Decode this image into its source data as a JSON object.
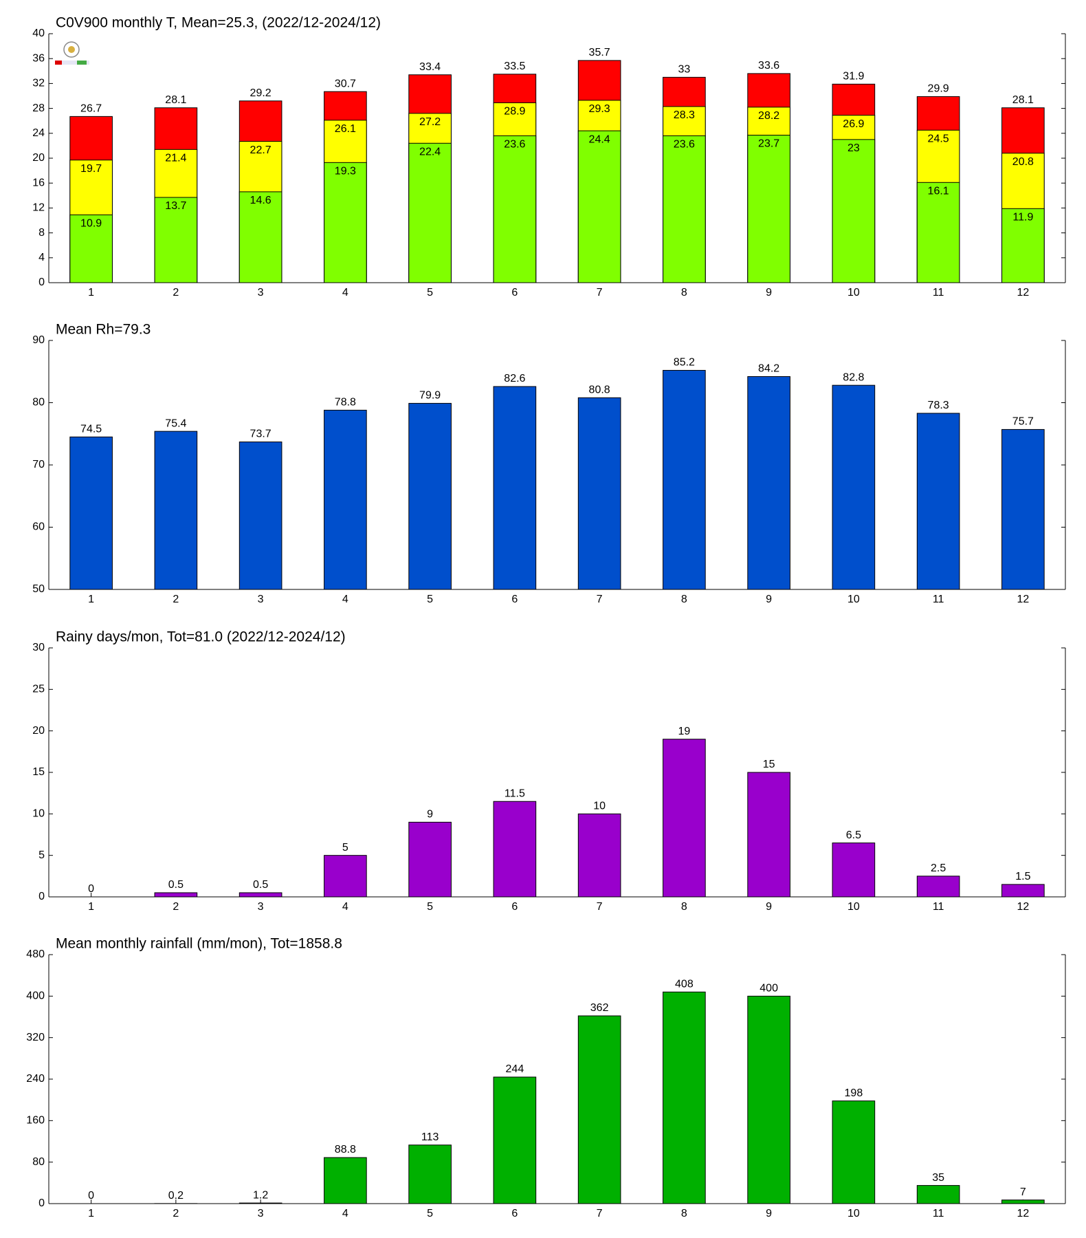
{
  "chart_data": [
    {
      "type": "bar",
      "title": "C0V900 monthly T, Mean=25.3, (2022/12-2024/12)",
      "categories": [
        "1",
        "2",
        "3",
        "4",
        "5",
        "6",
        "7",
        "8",
        "9",
        "10",
        "11",
        "12"
      ],
      "series": [
        {
          "color": "#ff0000",
          "values": [
            26.7,
            28.1,
            29.2,
            30.7,
            33.4,
            33.5,
            35.7,
            33,
            33.6,
            31.9,
            29.9,
            28.1
          ]
        },
        {
          "color": "#ffff00",
          "values": [
            19.7,
            21.4,
            22.7,
            26.1,
            27.2,
            28.9,
            29.3,
            28.3,
            28.2,
            26.9,
            24.5,
            20.8
          ]
        },
        {
          "color": "#80ff00",
          "values": [
            10.9,
            13.7,
            14.6,
            19.3,
            22.4,
            23.6,
            24.4,
            23.6,
            23.7,
            23,
            16.1,
            11.9
          ]
        }
      ],
      "ylim": [
        0,
        40
      ],
      "yticks": [
        0,
        4,
        8,
        12,
        16,
        20,
        24,
        28,
        32,
        36,
        40
      ]
    },
    {
      "type": "bar",
      "title": "Mean Rh=79.3",
      "categories": [
        "1",
        "2",
        "3",
        "4",
        "5",
        "6",
        "7",
        "8",
        "9",
        "10",
        "11",
        "12"
      ],
      "series": [
        {
          "color": "#004fcc",
          "values": [
            74.5,
            75.4,
            73.7,
            78.8,
            79.9,
            82.6,
            80.8,
            85.2,
            84.2,
            82.8,
            78.3,
            75.7
          ]
        }
      ],
      "ylim": [
        50,
        90
      ],
      "yticks": [
        50,
        60,
        70,
        80,
        90
      ]
    },
    {
      "type": "bar",
      "title": "Rainy days/mon, Tot=81.0 (2022/12-2024/12)",
      "categories": [
        "1",
        "2",
        "3",
        "4",
        "5",
        "6",
        "7",
        "8",
        "9",
        "10",
        "11",
        "12"
      ],
      "series": [
        {
          "color": "#9900cc",
          "values": [
            0,
            0.5,
            0.5,
            5,
            9,
            11.5,
            10,
            19,
            15,
            6.5,
            2.5,
            1.5
          ]
        }
      ],
      "ylim": [
        0,
        30
      ],
      "yticks": [
        0,
        5,
        10,
        15,
        20,
        25,
        30
      ]
    },
    {
      "type": "bar",
      "title": "Mean monthly rainfall (mm/mon), Tot=1858.8",
      "categories": [
        "1",
        "2",
        "3",
        "4",
        "5",
        "6",
        "7",
        "8",
        "9",
        "10",
        "11",
        "12"
      ],
      "series": [
        {
          "color": "#00b000",
          "values": [
            0,
            0.2,
            1.2,
            88.8,
            113,
            244,
            362,
            408,
            400,
            198,
            35,
            7
          ]
        }
      ],
      "ylim": [
        0,
        480
      ],
      "yticks": [
        0,
        80,
        160,
        240,
        320,
        400,
        480
      ]
    }
  ]
}
